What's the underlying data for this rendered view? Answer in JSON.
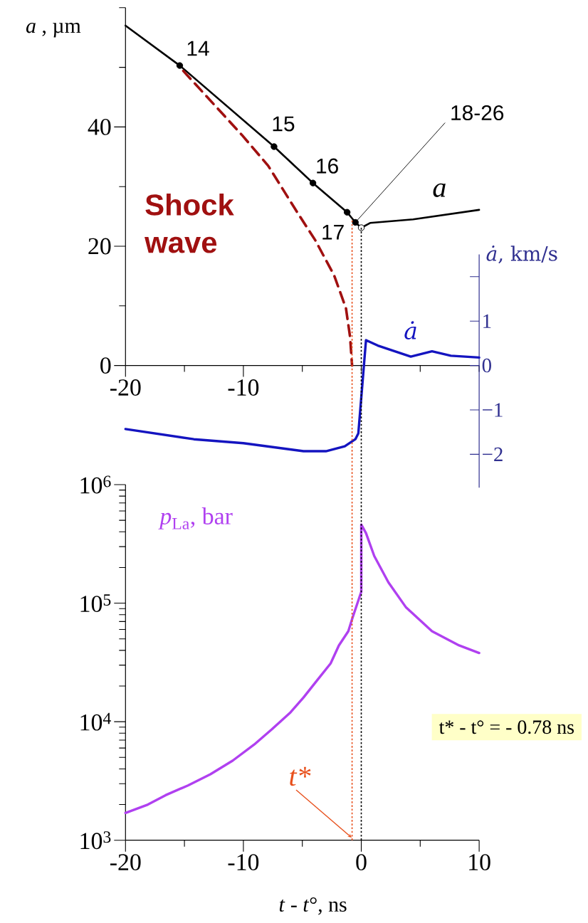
{
  "chart_data": [
    {
      "type": "line",
      "ylabel": "*a* , µm",
      "y2label": "*ȧ*, km/s",
      "xlim": [
        -20,
        10
      ],
      "xticks": [
        -20,
        {
          "value": -15,
          "label": null
        },
        -10,
        {
          "value": -5,
          "label": null
        },
        {
          "value": 0,
          "label": null
        },
        {
          "value": 5,
          "label": null
        },
        {
          "value": 10,
          "label": null
        }
      ],
      "ylim": [
        0,
        60
      ],
      "yticks": [
        0,
        {
          "value": 10,
          "label": null
        },
        20,
        {
          "value": 30,
          "label": null
        },
        40,
        {
          "value": 50,
          "label": null
        },
        {
          "value": 60,
          "label": null
        }
      ],
      "y2lim": [
        -2.75,
        2.5
      ],
      "y2ticks": [
        {
          "value": -2,
          "label": "−2"
        },
        {
          "value": -1,
          "label": "−1"
        },
        0,
        1,
        {
          "value": 2,
          "label": null
        }
      ],
      "legend": false,
      "series": [
        {
          "name": "a",
          "color": "#000000",
          "x": [
            -20,
            -15.4,
            -7.4,
            -4.1,
            -1.2,
            -0.5,
            0,
            0.75,
            4.4,
            10
          ],
          "values": [
            57,
            50.3,
            36.7,
            30.6,
            25.7,
            24,
            23.1,
            23.9,
            24.5,
            26.1
          ]
        },
        {
          "name": "Shock wave",
          "color": "#a01010",
          "line_style": "dashed",
          "x": [
            -15.1,
            -10.1,
            -7.9,
            -5.5,
            -3.9,
            -2.3,
            -1.3,
            -0.95,
            -0.78
          ],
          "values": [
            49.4,
            38.6,
            33.5,
            25.9,
            21,
            15.1,
            9.6,
            4.8,
            0
          ]
        },
        {
          "type": "scatter",
          "color": "#000000",
          "marker": "circle",
          "x": [
            -15.4,
            -7.4,
            -4.1,
            -1.2,
            -0.5
          ],
          "values": [
            50.3,
            36.7,
            30.6,
            25.7,
            24
          ]
        },
        {
          "type": "scatter",
          "color": "#ffffff",
          "marker": "circle",
          "x": [
            0
          ],
          "values": [
            23.1
          ]
        },
        {
          "name": "ȧ",
          "color": "#1414c0",
          "axis": "y2",
          "x": [
            -20,
            -14.2,
            -10,
            -4.9,
            -3,
            -1.4,
            -0.5,
            -0.25,
            0.4,
            1.4,
            4.2,
            6,
            7.6,
            10
          ],
          "values": [
            -1.43,
            -1.66,
            -1.75,
            -1.93,
            -1.93,
            -1.82,
            -1.66,
            -1.53,
            0.57,
            0.45,
            0.2,
            0.32,
            0.22,
            0.18
          ]
        }
      ],
      "annotations": [
        {
          "text": "14",
          "x": -15.4,
          "y": 50.3
        },
        {
          "text": "15",
          "x": -7.4,
          "y": 36.7
        },
        {
          "text": "16",
          "x": -4.1,
          "y": 30.6
        },
        {
          "text": "17",
          "x": -1.2,
          "y": 25.7
        },
        {
          "text": "18-26",
          "x": -0.5,
          "y": 24
        }
      ]
    },
    {
      "type": "line",
      "ylabel": "*p*$_{La}$, bar",
      "xlabel": "*t* - *t*°, ns",
      "log": "y",
      "xlim": [
        -20,
        10
      ],
      "xticks": [
        -20,
        {
          "value": -15,
          "label": null
        },
        -10,
        {
          "value": -5,
          "label": null
        },
        0,
        {
          "value": 5,
          "label": null
        },
        10
      ],
      "ylim": [
        1000,
        1000000
      ],
      "yticks": [
        {
          "value": 1000,
          "label": "10$^{3}$"
        },
        {
          "value": 10000,
          "label": "10$^{4}$"
        },
        {
          "value": 100000,
          "label": "10$^{5}$"
        },
        {
          "value": 1000000,
          "label": "10$^{6}$"
        }
      ],
      "legend": false,
      "series": [
        {
          "color": "#b040f0",
          "x": [
            -20,
            -18.1,
            -16.6,
            -14.7,
            -12.8,
            -10.9,
            -9.1,
            -7.6,
            -6,
            -4.9,
            -3.8,
            -2.6,
            -1.9,
            -1.1,
            -0.75,
            0,
            0,
            0.4,
            1.1,
            2.3,
            3.8,
            6,
            8.3,
            10
          ],
          "values": [
            1700,
            2000,
            2400,
            2900,
            3600,
            4700,
            6400,
            8600,
            12000,
            16000,
            22000,
            31000,
            44000,
            58000,
            75000,
            125000,
            460000,
            390000,
            250000,
            150000,
            92000,
            58000,
            44000,
            38000
          ]
        }
      ],
      "ref_lines": [
        {
          "axis": "x",
          "value": -0.78,
          "label": "t*",
          "color": "#e8501c",
          "line_style": "dotted"
        },
        {
          "axis": "x",
          "value": 0,
          "color": "#000000",
          "line_style": "dotted"
        }
      ],
      "annotations": [
        "t* - t° = - 0.78 ns"
      ]
    }
  ]
}
